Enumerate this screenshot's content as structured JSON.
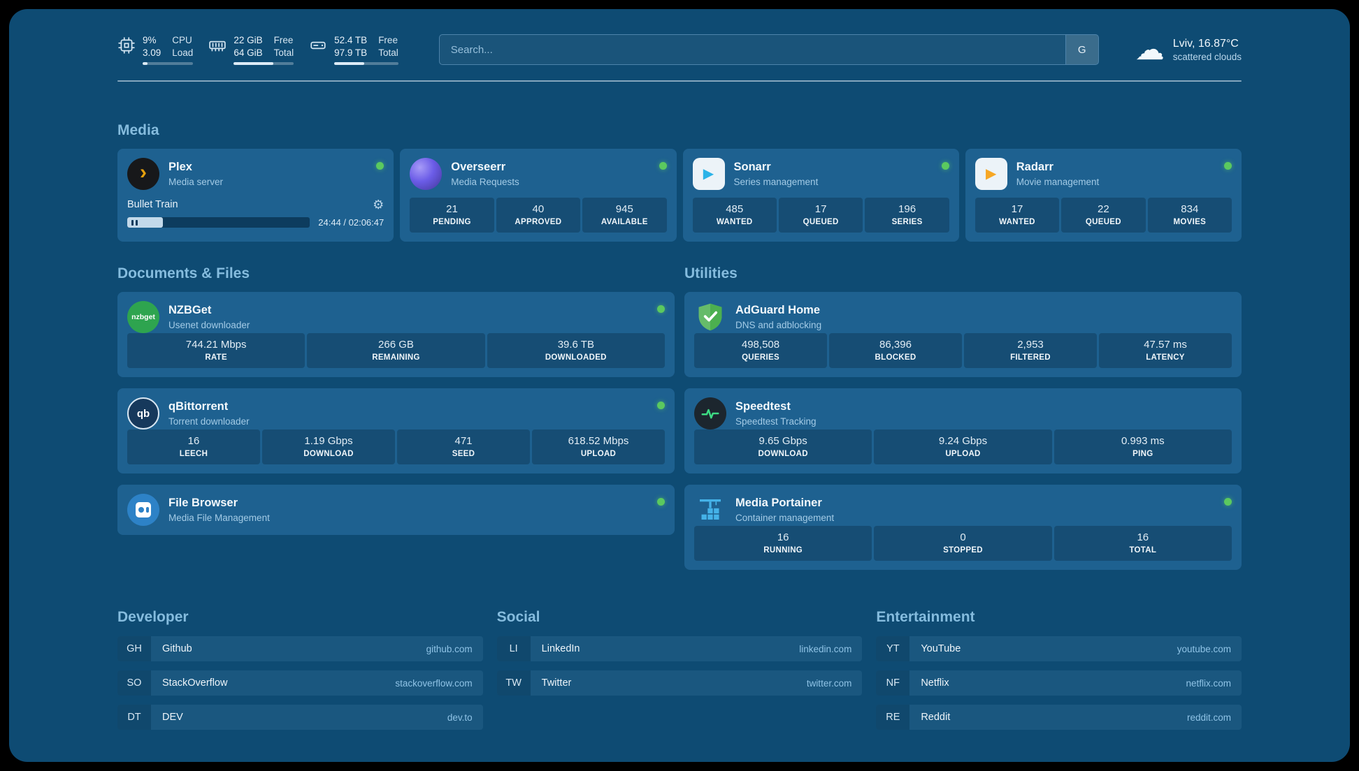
{
  "topbar": {
    "cpu": {
      "percent": "9%",
      "load": "3.09",
      "label_top": "CPU",
      "label_bottom": "Load",
      "bar_percent": 9
    },
    "memory": {
      "free": "22 GiB",
      "total": "64 GiB",
      "label_top": "Free",
      "label_bottom": "Total",
      "bar_percent": 66
    },
    "disk": {
      "free": "52.4 TB",
      "total": "97.9 TB",
      "label_top": "Free",
      "label_bottom": "Total",
      "bar_percent": 47
    },
    "search": {
      "placeholder": "Search...",
      "button_label": "G"
    },
    "weather": {
      "location": "Lviv, 16.87°C",
      "condition": "scattered clouds"
    }
  },
  "icons": {
    "cloud_glyph": "☁",
    "gear_glyph": "⚙",
    "plex_glyph": "›",
    "play_glyph": "▶",
    "nzbget_label": "nzbget",
    "qbittorrent_label": "qb"
  },
  "sections": {
    "media": {
      "heading": "Media",
      "plex": {
        "title": "Plex",
        "subtitle": "Media server",
        "now_playing": "Bullet Train",
        "time": "24:44 / 02:06:47",
        "progress_percent": 19.5
      },
      "overseerr": {
        "title": "Overseerr",
        "subtitle": "Media Requests",
        "stats": [
          {
            "value": "21",
            "label": "PENDING"
          },
          {
            "value": "40",
            "label": "APPROVED"
          },
          {
            "value": "945",
            "label": "AVAILABLE"
          }
        ]
      },
      "sonarr": {
        "title": "Sonarr",
        "subtitle": "Series management",
        "stats": [
          {
            "value": "485",
            "label": "WANTED"
          },
          {
            "value": "17",
            "label": "QUEUED"
          },
          {
            "value": "196",
            "label": "SERIES"
          }
        ]
      },
      "radarr": {
        "title": "Radarr",
        "subtitle": "Movie management",
        "stats": [
          {
            "value": "17",
            "label": "WANTED"
          },
          {
            "value": "22",
            "label": "QUEUED"
          },
          {
            "value": "834",
            "label": "MOVIES"
          }
        ]
      }
    },
    "documents": {
      "heading": "Documents & Files",
      "nzbget": {
        "title": "NZBGet",
        "subtitle": "Usenet downloader",
        "stats": [
          {
            "value": "744.21 Mbps",
            "label": "RATE"
          },
          {
            "value": "266 GB",
            "label": "REMAINING"
          },
          {
            "value": "39.6 TB",
            "label": "DOWNLOADED"
          }
        ]
      },
      "qbittorrent": {
        "title": "qBittorrent",
        "subtitle": "Torrent downloader",
        "stats": [
          {
            "value": "16",
            "label": "LEECH"
          },
          {
            "value": "1.19 Gbps",
            "label": "DOWNLOAD"
          },
          {
            "value": "471",
            "label": "SEED"
          },
          {
            "value": "618.52 Mbps",
            "label": "UPLOAD"
          }
        ]
      },
      "filebrowser": {
        "title": "File Browser",
        "subtitle": "Media File Management"
      }
    },
    "utilities": {
      "heading": "Utilities",
      "adguard": {
        "title": "AdGuard Home",
        "subtitle": "DNS and adblocking",
        "stats": [
          {
            "value": "498,508",
            "label": "QUERIES"
          },
          {
            "value": "86,396",
            "label": "BLOCKED"
          },
          {
            "value": "2,953",
            "label": "FILTERED"
          },
          {
            "value": "47.57 ms",
            "label": "LATENCY"
          }
        ]
      },
      "speedtest": {
        "title": "Speedtest",
        "subtitle": "Speedtest Tracking",
        "stats": [
          {
            "value": "9.65 Gbps",
            "label": "DOWNLOAD"
          },
          {
            "value": "9.24 Gbps",
            "label": "UPLOAD"
          },
          {
            "value": "0.993 ms",
            "label": "PING"
          }
        ]
      },
      "portainer": {
        "title": "Media Portainer",
        "subtitle": "Container management",
        "stats": [
          {
            "value": "16",
            "label": "RUNNING"
          },
          {
            "value": "0",
            "label": "STOPPED"
          },
          {
            "value": "16",
            "label": "TOTAL"
          }
        ]
      }
    },
    "bookmarks": {
      "developer": {
        "heading": "Developer",
        "items": [
          {
            "abbr": "GH",
            "name": "Github",
            "url": "github.com"
          },
          {
            "abbr": "SO",
            "name": "StackOverflow",
            "url": "stackoverflow.com"
          },
          {
            "abbr": "DT",
            "name": "DEV",
            "url": "dev.to"
          }
        ]
      },
      "social": {
        "heading": "Social",
        "items": [
          {
            "abbr": "LI",
            "name": "LinkedIn",
            "url": "linkedin.com"
          },
          {
            "abbr": "TW",
            "name": "Twitter",
            "url": "twitter.com"
          }
        ]
      },
      "entertainment": {
        "heading": "Entertainment",
        "items": [
          {
            "abbr": "YT",
            "name": "YouTube",
            "url": "youtube.com"
          },
          {
            "abbr": "NF",
            "name": "Netflix",
            "url": "netflix.com"
          },
          {
            "abbr": "RE",
            "name": "Reddit",
            "url": "reddit.com"
          }
        ]
      }
    }
  }
}
